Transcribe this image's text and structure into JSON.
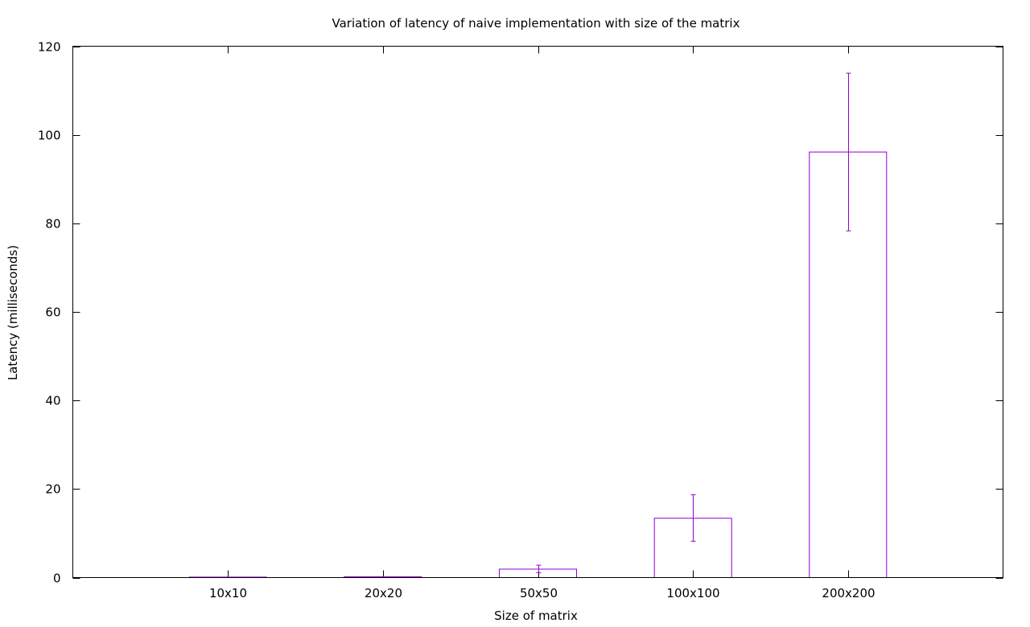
{
  "chart_data": {
    "type": "bar",
    "title": "Variation of latency of naive implementation with size of the matrix",
    "xlabel": "Size of matrix",
    "ylabel": "Latency (milliseconds)",
    "categories": [
      "10x10",
      "20x20",
      "50x50",
      "100x100",
      "200x200"
    ],
    "series": [
      {
        "values": [
          0.02,
          0.2,
          1.9,
          13.4,
          96.1
        ],
        "error_low": [
          0.02,
          0.15,
          1.1,
          8.2,
          78.3
        ],
        "error_high": [
          0.03,
          0.25,
          2.8,
          18.7,
          113.9
        ]
      }
    ],
    "ylim": [
      0,
      120
    ],
    "yticks": [
      0,
      20,
      40,
      60,
      80,
      100,
      120
    ],
    "grid": false,
    "legend": "none",
    "colors": {
      "bar": "#9400d3",
      "axes": "#000000",
      "background": "#ffffff"
    }
  }
}
